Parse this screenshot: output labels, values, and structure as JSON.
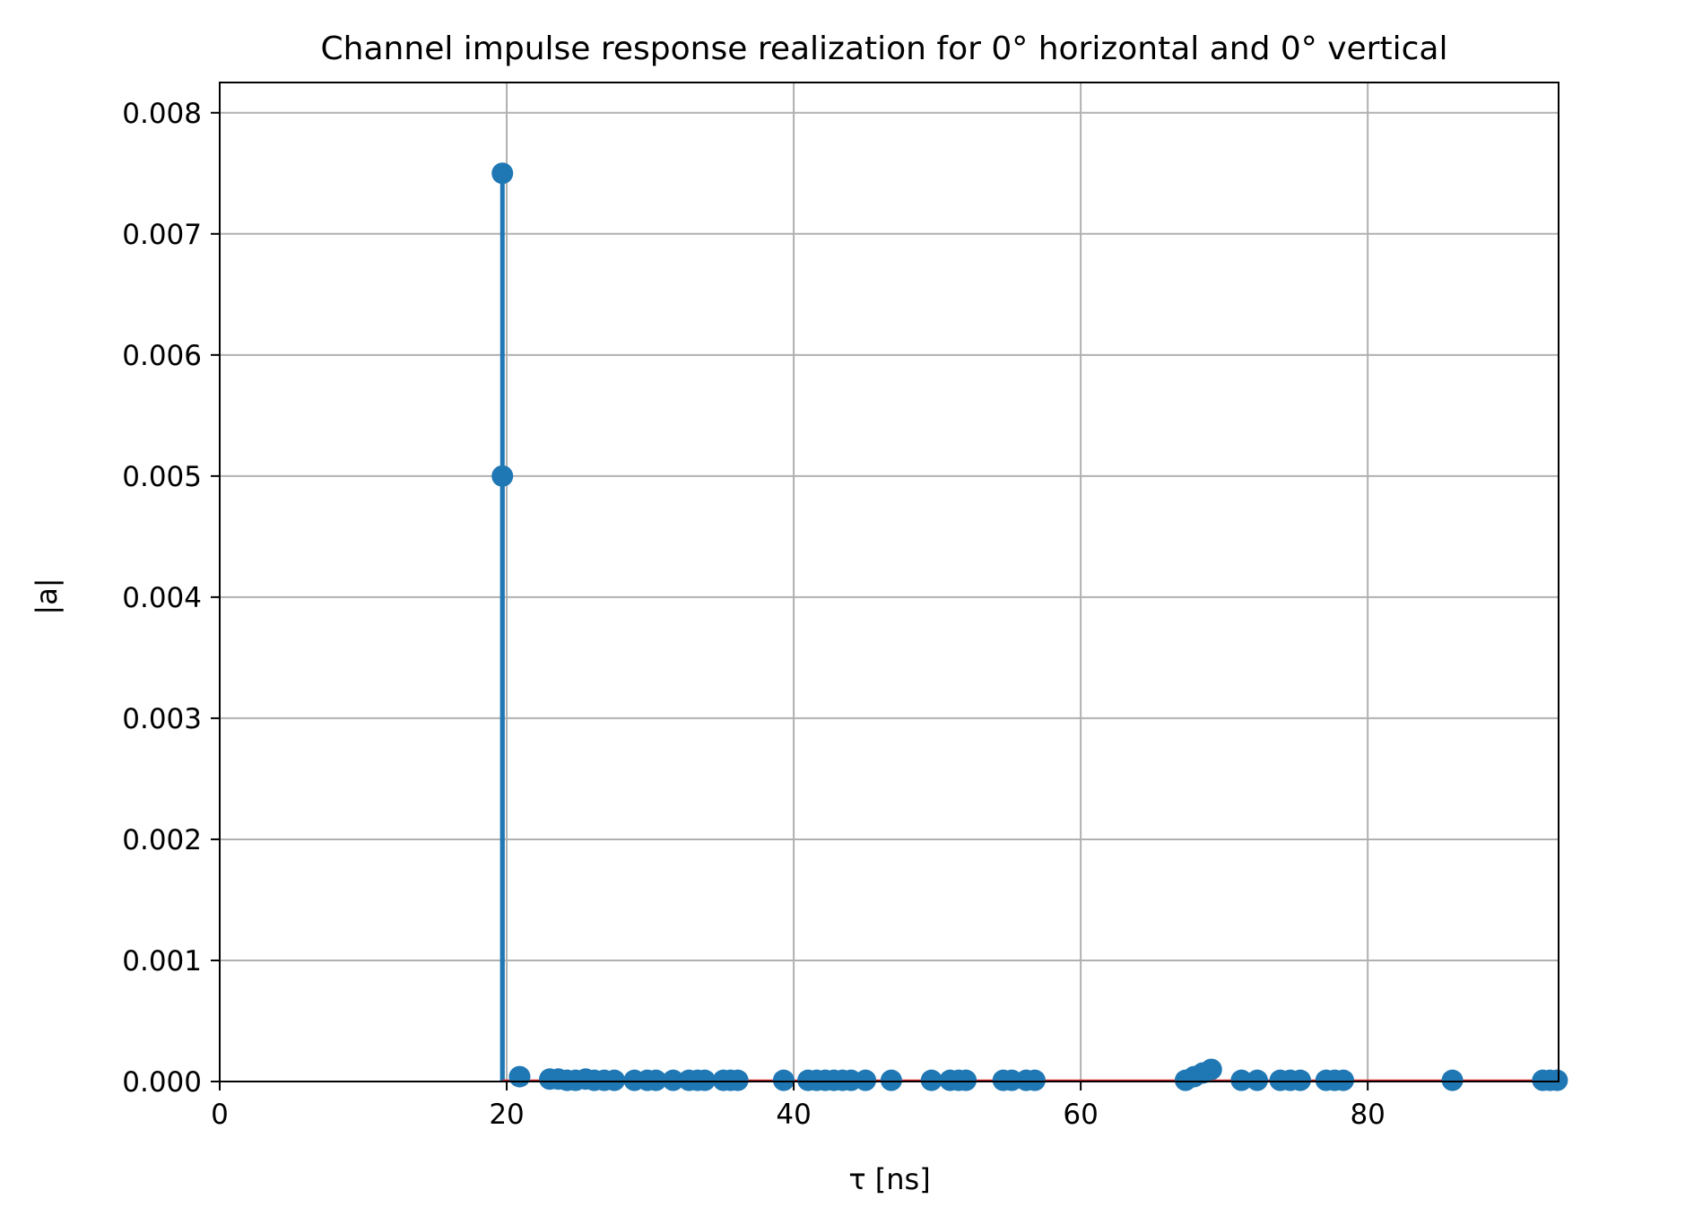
{
  "chart_data": {
    "type": "stem",
    "title": "Channel impulse response realization for 0° horizontal and 0° vertical",
    "xlabel": "τ [ns]",
    "ylabel": "|a|",
    "xlim": [
      0,
      93.3
    ],
    "ylim": [
      0,
      0.00825
    ],
    "xticks": [
      0,
      20,
      40,
      60,
      80
    ],
    "xtick_labels": [
      "0",
      "20",
      "40",
      "60",
      "80"
    ],
    "yticks": [
      0.0,
      0.001,
      0.002,
      0.003,
      0.004,
      0.005,
      0.006,
      0.007,
      0.008
    ],
    "ytick_labels": [
      "0.000",
      "0.001",
      "0.002",
      "0.003",
      "0.004",
      "0.005",
      "0.006",
      "0.007",
      "0.008"
    ],
    "grid": true,
    "colors": {
      "stem": "#1f77b4",
      "baseline": "#d62728",
      "grid": "#b0b0b0",
      "axes": "#000000"
    },
    "series": [
      {
        "x": [
          19.7,
          19.7,
          20.9,
          23.0,
          23.6,
          24.2,
          24.8,
          25.5,
          26.1,
          26.8,
          27.5,
          28.9,
          29.8,
          30.4,
          31.6,
          32.7,
          33.3,
          33.8,
          35.1,
          35.6,
          36.1,
          39.3,
          41.0,
          41.6,
          42.2,
          42.8,
          43.4,
          44.0,
          45.0,
          46.8,
          49.6,
          50.9,
          51.5,
          52.0,
          54.6,
          55.2,
          56.2,
          56.8,
          67.3,
          67.9,
          68.5,
          69.1,
          71.2,
          72.3,
          73.9,
          74.6,
          75.3,
          77.1,
          77.7,
          78.3,
          85.9,
          92.2,
          92.7,
          93.2
        ],
        "values": [
          0.0075,
          0.005,
          4e-05,
          2e-05,
          2e-05,
          1e-05,
          1e-05,
          2e-05,
          1e-05,
          1e-05,
          1e-05,
          1e-05,
          1e-05,
          1e-05,
          1e-05,
          1e-05,
          1e-05,
          1e-05,
          1e-05,
          1e-05,
          1e-05,
          1e-05,
          1e-05,
          1e-05,
          1e-05,
          1e-05,
          1e-05,
          1e-05,
          1e-05,
          1e-05,
          1e-05,
          1e-05,
          1e-05,
          1e-05,
          1e-05,
          1e-05,
          1e-05,
          1e-05,
          1e-05,
          4e-05,
          7e-05,
          0.0001,
          1e-05,
          1e-05,
          1e-05,
          1e-05,
          1e-05,
          1e-05,
          1e-05,
          1e-05,
          1e-05,
          1e-05,
          1e-05,
          1e-05
        ]
      }
    ]
  }
}
